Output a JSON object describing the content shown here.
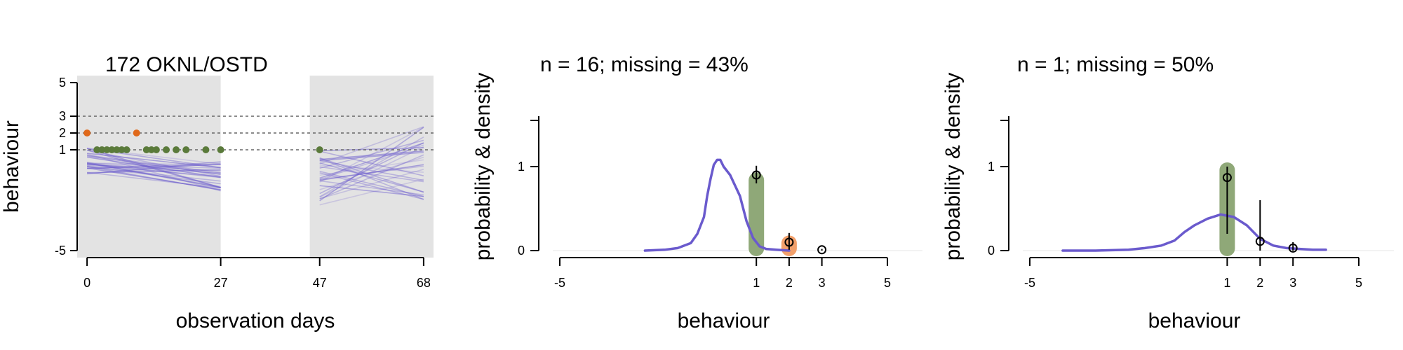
{
  "chart_data": [
    {
      "type": "line",
      "title": "172 OKNL/OSTD",
      "xlabel": "observation days",
      "ylabel": "behaviour",
      "x_ticks": [
        0,
        27,
        47,
        68
      ],
      "y_ticks": [
        -5,
        1,
        2,
        3,
        5
      ],
      "xlim": [
        -2,
        70
      ],
      "ylim": [
        -5,
        5
      ],
      "shaded_periods": [
        [
          -2,
          27
        ],
        [
          45,
          70
        ]
      ],
      "reference_lines": [
        1,
        2,
        3
      ],
      "colors": {
        "lines": "#6a5acd",
        "behaviour_1": "#5a7a3a",
        "behaviour_2": "#e0691a",
        "shade": "#e3e3e3"
      },
      "observations": [
        {
          "x": 0,
          "y": 2
        },
        {
          "x": 2,
          "y": 1
        },
        {
          "x": 3,
          "y": 1
        },
        {
          "x": 4,
          "y": 1
        },
        {
          "x": 5,
          "y": 1
        },
        {
          "x": 6,
          "y": 1
        },
        {
          "x": 7,
          "y": 1
        },
        {
          "x": 8,
          "y": 1
        },
        {
          "x": 10,
          "y": 2
        },
        {
          "x": 12,
          "y": 1
        },
        {
          "x": 13,
          "y": 1
        },
        {
          "x": 14,
          "y": 1
        },
        {
          "x": 16,
          "y": 1
        },
        {
          "x": 18,
          "y": 1
        },
        {
          "x": 20,
          "y": 1
        },
        {
          "x": 24,
          "y": 1
        },
        {
          "x": 27,
          "y": 1
        },
        {
          "x": 47,
          "y": 1
        }
      ],
      "trajectory_bands": [
        {
          "x": [
            0,
            27
          ],
          "y_start": [
            -0.5,
            1.3
          ],
          "y_end": [
            -1.6,
            0.3
          ],
          "count": 30
        },
        {
          "x": [
            47,
            68
          ],
          "y_start": [
            -2.5,
            1.2
          ],
          "y_end": [
            -2.0,
            3.2
          ],
          "count": 30
        }
      ]
    },
    {
      "type": "bar",
      "title": "n = 16; missing = 43%",
      "xlabel": "behaviour",
      "ylabel": "probability & density",
      "x_ticks": [
        -5,
        1,
        2,
        3,
        5
      ],
      "y_ticks": [
        0,
        1
      ],
      "xlim": [
        -5,
        5
      ],
      "ylim": [
        0,
        1.6
      ],
      "bars": [
        {
          "x": 1,
          "value": 0.93,
          "color": "#8fa878"
        },
        {
          "x": 2,
          "value": 0.18,
          "color": "#f2a06b"
        }
      ],
      "points": [
        {
          "x": 1,
          "y": 0.9,
          "lo": 0.8,
          "hi": 1.01
        },
        {
          "x": 2,
          "y": 0.1,
          "lo": 0.01,
          "hi": 0.21
        },
        {
          "x": 3,
          "y": 0.01,
          "lo": 0.0,
          "hi": 0.02
        }
      ],
      "density": {
        "color": "#6a5acd",
        "x": [
          -2.4,
          -1.8,
          -1.4,
          -1.0,
          -0.8,
          -0.6,
          -0.5,
          -0.4,
          -0.3,
          -0.2,
          -0.1,
          0.0,
          0.2,
          0.5,
          0.7,
          0.9,
          1.1,
          1.3,
          1.6,
          2.0
        ],
        "y": [
          0.0,
          0.01,
          0.03,
          0.09,
          0.2,
          0.4,
          0.65,
          0.85,
          1.02,
          1.08,
          1.08,
          1.0,
          0.9,
          0.65,
          0.35,
          0.15,
          0.05,
          0.02,
          0.01,
          0.0
        ]
      }
    },
    {
      "type": "bar",
      "title": "n = 1; missing = 50%",
      "xlabel": "behaviour",
      "ylabel": "probability & density",
      "x_ticks": [
        -5,
        1,
        2,
        3,
        5
      ],
      "y_ticks": [
        0,
        1
      ],
      "xlim": [
        -5,
        5
      ],
      "ylim": [
        0,
        1.6
      ],
      "bars": [
        {
          "x": 1,
          "value": 1.05,
          "color": "#8fa878"
        }
      ],
      "points": [
        {
          "x": 1,
          "y": 0.87,
          "lo": 0.2,
          "hi": 1.0
        },
        {
          "x": 2,
          "y": 0.11,
          "lo": 0.0,
          "hi": 0.6
        },
        {
          "x": 3,
          "y": 0.03,
          "lo": 0.0,
          "hi": 0.1
        }
      ],
      "density": {
        "color": "#6a5acd",
        "x": [
          -4.0,
          -3.0,
          -2.0,
          -1.5,
          -1.0,
          -0.6,
          -0.3,
          0.0,
          0.4,
          0.8,
          1.2,
          1.6,
          2.0,
          2.4,
          2.8,
          3.2,
          3.6,
          4.0
        ],
        "y": [
          0.0,
          0.0,
          0.01,
          0.03,
          0.06,
          0.12,
          0.22,
          0.3,
          0.38,
          0.43,
          0.4,
          0.3,
          0.14,
          0.06,
          0.03,
          0.02,
          0.01,
          0.01
        ]
      }
    }
  ]
}
